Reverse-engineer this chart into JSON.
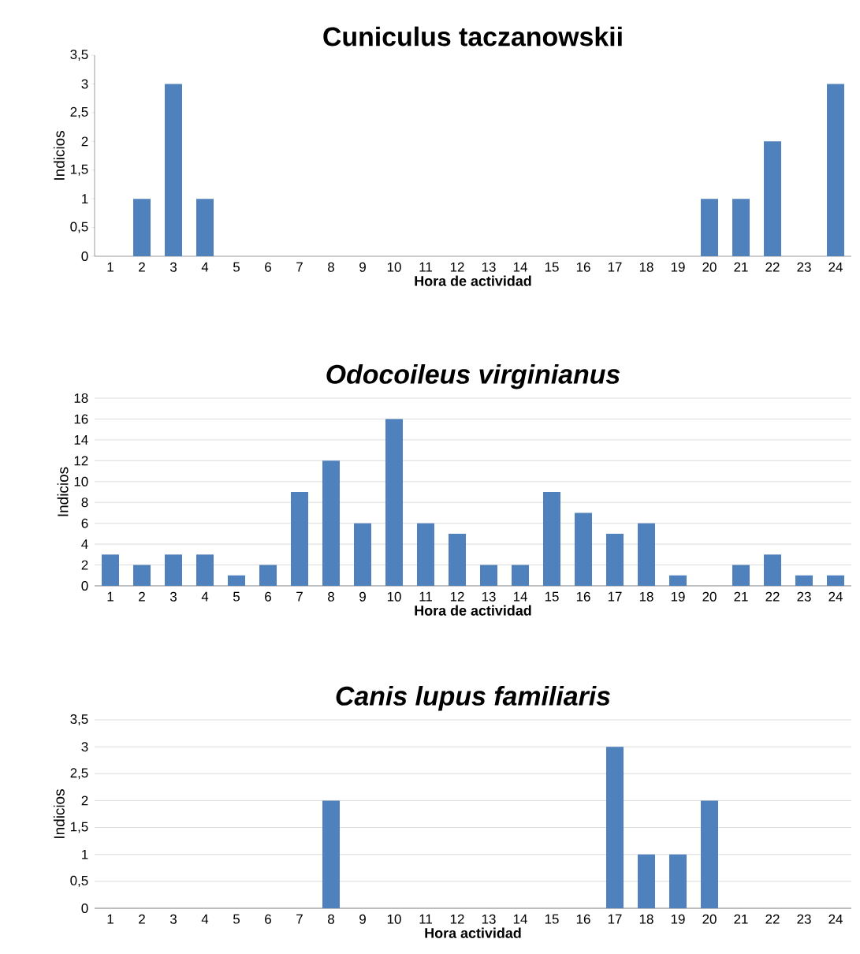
{
  "chart_data": [
    {
      "type": "bar",
      "title": "Cuniculus  taczanowskii",
      "xlabel": "Hora de actividad",
      "ylabel": "Indicios",
      "color": "#4f81bd",
      "grid": false,
      "categories": [
        "1",
        "2",
        "3",
        "4",
        "5",
        "6",
        "7",
        "8",
        "9",
        "10",
        "11",
        "12",
        "13",
        "14",
        "15",
        "16",
        "17",
        "18",
        "19",
        "20",
        "21",
        "22",
        "23",
        "24"
      ],
      "values": [
        0,
        1,
        3,
        1,
        0,
        0,
        0,
        0,
        0,
        0,
        0,
        0,
        0,
        0,
        0,
        0,
        0,
        0,
        0,
        1,
        1,
        2,
        0,
        3
      ],
      "ylim": [
        0,
        3.5
      ],
      "yticks": [
        0,
        {
          "value": 0.5,
          "label": "0,5"
        },
        1,
        {
          "value": 1.5,
          "label": "1,5"
        },
        2,
        {
          "value": 2.5,
          "label": "2,5"
        },
        3,
        {
          "value": 3.5,
          "label": "3,5"
        }
      ]
    },
    {
      "type": "bar",
      "title": "Odocoileus virginianus",
      "xlabel": "Hora de actividad",
      "ylabel": "Indicios",
      "color": "#4f81bd",
      "grid": "y",
      "categories": [
        "1",
        "2",
        "3",
        "4",
        "5",
        "6",
        "7",
        "8",
        "9",
        "10",
        "11",
        "12",
        "13",
        "14",
        "15",
        "16",
        "17",
        "18",
        "19",
        "20",
        "21",
        "22",
        "23",
        "24"
      ],
      "values": [
        3,
        2,
        3,
        3,
        1,
        2,
        9,
        12,
        6,
        16,
        6,
        5,
        2,
        2,
        9,
        7,
        5,
        6,
        1,
        0,
        2,
        3,
        1,
        1
      ],
      "ylim": [
        0,
        18
      ],
      "yticks": [
        0,
        2,
        4,
        6,
        8,
        10,
        12,
        14,
        16,
        18
      ]
    },
    {
      "type": "bar",
      "title": "Canis lupus familiaris",
      "xlabel": "Hora actividad",
      "ylabel": "Indicios",
      "color": "#4f81bd",
      "grid": "y",
      "categories": [
        "1",
        "2",
        "3",
        "4",
        "5",
        "6",
        "7",
        "8",
        "9",
        "10",
        "11",
        "12",
        "13",
        "14",
        "15",
        "16",
        "17",
        "18",
        "19",
        "20",
        "21",
        "22",
        "23",
        "24"
      ],
      "values": [
        0,
        0,
        0,
        0,
        0,
        0,
        0,
        2,
        0,
        0,
        0,
        0,
        0,
        0,
        0,
        0,
        3,
        1,
        1,
        2,
        0,
        0,
        0,
        0
      ],
      "ylim": [
        0,
        3.5
      ],
      "yticks": [
        0,
        {
          "value": 0.5,
          "label": "0,5"
        },
        1,
        {
          "value": 1.5,
          "label": "1,5"
        },
        2,
        {
          "value": 2.5,
          "label": "2,5"
        },
        3,
        {
          "value": 3.5,
          "label": "3,5"
        }
      ]
    }
  ]
}
